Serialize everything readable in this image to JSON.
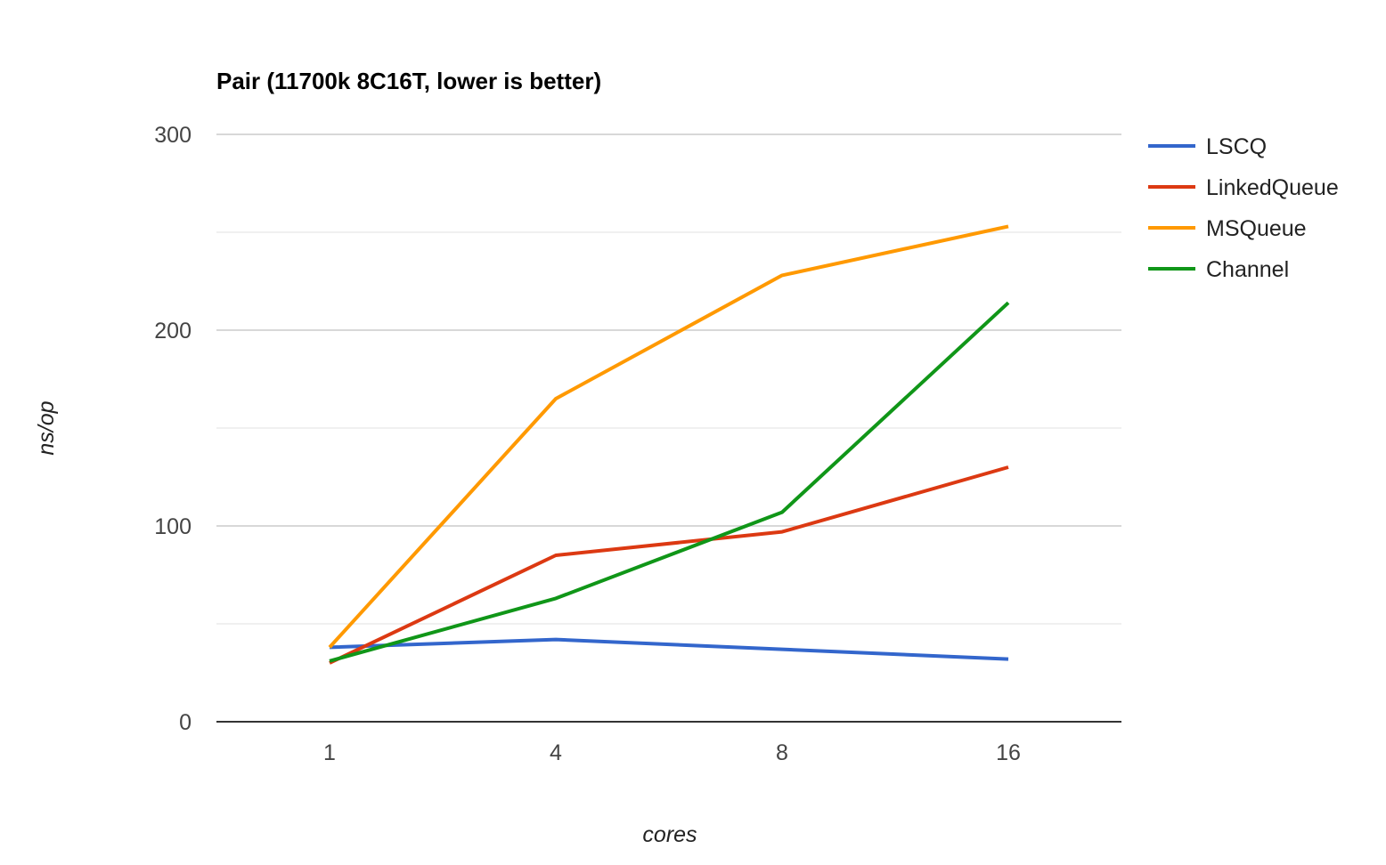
{
  "chart_data": {
    "type": "line",
    "title": "Pair (11700k 8C16T, lower is better)",
    "xlabel": "cores",
    "ylabel": "ns/op",
    "categories": [
      "1",
      "4",
      "8",
      "16"
    ],
    "ylim": [
      0,
      300
    ],
    "yticks": [
      0,
      100,
      200,
      300
    ],
    "minor_gridlines": [
      50,
      150,
      250
    ],
    "grid": true,
    "legend_position": "right",
    "series": [
      {
        "name": "LSCQ",
        "color": "#3366cc",
        "values": [
          38,
          42,
          37,
          32
        ]
      },
      {
        "name": "LinkedQueue",
        "color": "#dc3912",
        "values": [
          30,
          85,
          97,
          130
        ]
      },
      {
        "name": "MSQueue",
        "color": "#ff9900",
        "values": [
          38,
          165,
          228,
          253
        ]
      },
      {
        "name": "Channel",
        "color": "#109618",
        "values": [
          31,
          63,
          107,
          214
        ]
      }
    ]
  }
}
